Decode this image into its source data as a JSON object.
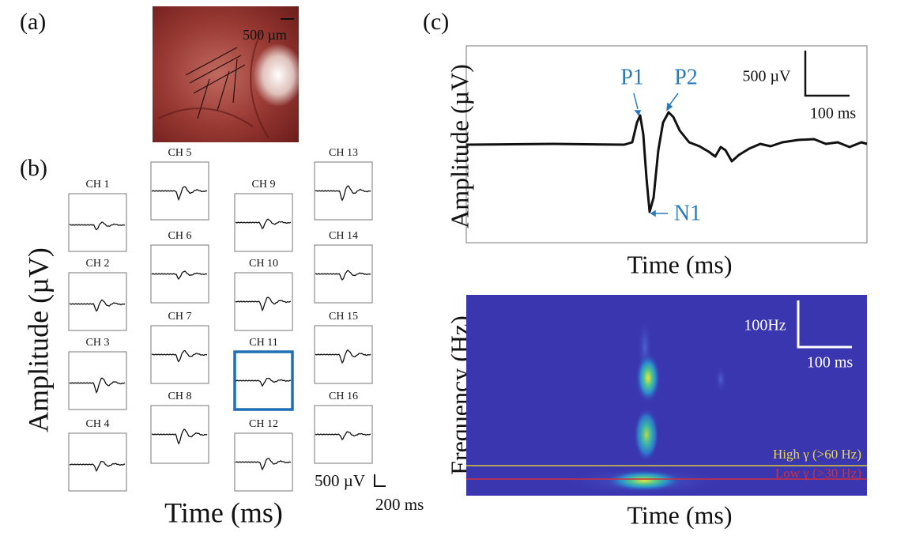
{
  "panels": {
    "a": {
      "label": "(a)",
      "scale_bar": "500 µm"
    },
    "b": {
      "label": "(b)",
      "y_label": "Amplitude (µV)",
      "x_label": "Time (ms)",
      "channels": [
        "CH 1",
        "CH 2",
        "CH 3",
        "CH 4",
        "CH 5",
        "CH 6",
        "CH 7",
        "CH 8",
        "CH 9",
        "CH 10",
        "CH 11",
        "CH 12",
        "CH 13",
        "CH 14",
        "CH 15",
        "CH 16"
      ],
      "scale_bar_y": "500 µV",
      "scale_bar_x": "200 ms"
    },
    "c": {
      "label": "(c)",
      "erp": {
        "y_label": "Amplitude (µV)",
        "x_label": "Time (ms)",
        "peaks": [
          "P1",
          "P2",
          "N1"
        ],
        "scale_bar_y": "500 µV",
        "scale_bar_x": "100 ms"
      },
      "spectrogram": {
        "y_label": "Frequency (Hz)",
        "x_label": "Time (ms)",
        "scale_bar_y": "100Hz",
        "scale_bar_x": "100 ms",
        "bands": [
          "High γ (>60 Hz)",
          "Low γ (>30 Hz)"
        ]
      }
    }
  }
}
